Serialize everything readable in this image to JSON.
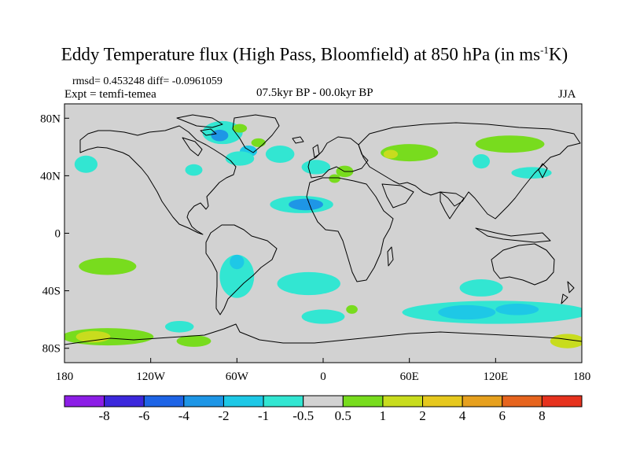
{
  "figure": {
    "title_main": "Eddy Temperature flux (High Pass, Bloomfield) at 850 hPa (in ms",
    "title_sup": "-1",
    "title_end": "K)",
    "stats": "rmsd= 0.453248 diff= -0.0961059",
    "expt": "Expt = temfi-temea",
    "period": "07.5kyr BP - 00.0kyr BP",
    "season": "JJA"
  },
  "chart_data": {
    "type": "heatmap",
    "variable": "Eddy Temperature flux difference at 850 hPa",
    "units": "m s-1 K",
    "xlim": [
      -180,
      180
    ],
    "ylim": [
      -90,
      90
    ],
    "x_ticks": [
      {
        "value": -180,
        "label": "180"
      },
      {
        "value": -120,
        "label": "120W"
      },
      {
        "value": -60,
        "label": "60W"
      },
      {
        "value": 0,
        "label": "0"
      },
      {
        "value": 60,
        "label": "60E"
      },
      {
        "value": 120,
        "label": "120E"
      },
      {
        "value": 180,
        "label": "180"
      }
    ],
    "y_ticks": [
      {
        "value": 80,
        "label": "80N"
      },
      {
        "value": 40,
        "label": "40N"
      },
      {
        "value": 0,
        "label": "0"
      },
      {
        "value": -40,
        "label": "40S"
      },
      {
        "value": -80,
        "label": "80S"
      }
    ],
    "colorbar": {
      "colors": [
        "#8c1ee6",
        "#3c28dc",
        "#1e64e6",
        "#1e96e6",
        "#1ec8e6",
        "#32e6d2",
        "#d2d2d2",
        "#78dc1e",
        "#c8dc1e",
        "#e6c81e",
        "#e6a01e",
        "#e6641e",
        "#e6321e"
      ],
      "labels": [
        "-8",
        "-6",
        "-4",
        "-2",
        "-1",
        "-0.5",
        "0.5",
        "1",
        "2",
        "4",
        "6",
        "8"
      ]
    },
    "anomalies": [
      {
        "lon": -70,
        "lat": 70,
        "rlon": 14,
        "rlat": 8,
        "level": 5,
        "tone": "cyan"
      },
      {
        "lon": -72,
        "lat": 68,
        "rlon": 6,
        "rlat": 4,
        "level": 3,
        "tone": "blue"
      },
      {
        "lon": -52,
        "lat": 57,
        "rlon": 6,
        "rlat": 4,
        "level": 4,
        "tone": "blue"
      },
      {
        "lon": -58,
        "lat": 52,
        "rlon": 10,
        "rlat": 5,
        "level": 5,
        "tone": "cyan"
      },
      {
        "lon": -58,
        "lat": 73,
        "rlon": 5,
        "rlat": 3,
        "level": 7,
        "tone": "green"
      },
      {
        "lon": -45,
        "lat": 63,
        "rlon": 5,
        "rlat": 3,
        "level": 7,
        "tone": "green"
      },
      {
        "lon": -165,
        "lat": 48,
        "rlon": 8,
        "rlat": 6,
        "level": 5,
        "tone": "cyan"
      },
      {
        "lon": -90,
        "lat": 44,
        "rlon": 6,
        "rlat": 4,
        "level": 5,
        "tone": "cyan"
      },
      {
        "lon": -30,
        "lat": 55,
        "rlon": 10,
        "rlat": 6,
        "level": 5,
        "tone": "cyan"
      },
      {
        "lon": -5,
        "lat": 46,
        "rlon": 10,
        "rlat": 5,
        "level": 5,
        "tone": "cyan"
      },
      {
        "lon": 15,
        "lat": 43,
        "rlon": 6,
        "rlat": 4,
        "level": 7,
        "tone": "green"
      },
      {
        "lon": 8,
        "lat": 38,
        "rlon": 4,
        "rlat": 3,
        "level": 7,
        "tone": "green"
      },
      {
        "lon": -15,
        "lat": 20,
        "rlon": 22,
        "rlat": 6,
        "level": 5,
        "tone": "cyan"
      },
      {
        "lon": -12,
        "lat": 20,
        "rlon": 12,
        "rlat": 4,
        "level": 3,
        "tone": "blue"
      },
      {
        "lon": 60,
        "lat": 56,
        "rlon": 20,
        "rlat": 6,
        "level": 7,
        "tone": "green"
      },
      {
        "lon": 47,
        "lat": 55,
        "rlon": 5,
        "rlat": 3,
        "level": 8,
        "tone": "yellow"
      },
      {
        "lon": 130,
        "lat": 62,
        "rlon": 24,
        "rlat": 6,
        "level": 7,
        "tone": "green"
      },
      {
        "lon": 110,
        "lat": 50,
        "rlon": 6,
        "rlat": 5,
        "level": 5,
        "tone": "cyan"
      },
      {
        "lon": 145,
        "lat": 42,
        "rlon": 14,
        "rlat": 4,
        "level": 5,
        "tone": "cyan"
      },
      {
        "lon": -150,
        "lat": -23,
        "rlon": 20,
        "rlat": 6,
        "level": 7,
        "tone": "green"
      },
      {
        "lon": -60,
        "lat": -30,
        "rlon": 12,
        "rlat": 15,
        "level": 5,
        "tone": "cyan"
      },
      {
        "lon": -60,
        "lat": -20,
        "rlon": 5,
        "rlat": 5,
        "level": 4,
        "tone": "blue"
      },
      {
        "lon": -10,
        "lat": -35,
        "rlon": 22,
        "rlat": 8,
        "level": 5,
        "tone": "cyan"
      },
      {
        "lon": 0,
        "lat": -58,
        "rlon": 15,
        "rlat": 5,
        "level": 5,
        "tone": "cyan"
      },
      {
        "lon": 20,
        "lat": -53,
        "rlon": 4,
        "rlat": 3,
        "level": 7,
        "tone": "green"
      },
      {
        "lon": 120,
        "lat": -55,
        "rlon": 65,
        "rlat": 8,
        "level": 5,
        "tone": "cyan"
      },
      {
        "lon": 100,
        "lat": -55,
        "rlon": 20,
        "rlat": 5,
        "level": 4,
        "tone": "blue"
      },
      {
        "lon": 135,
        "lat": -53,
        "rlon": 15,
        "rlat": 4,
        "level": 4,
        "tone": "blue"
      },
      {
        "lon": 110,
        "lat": -38,
        "rlon": 15,
        "rlat": 6,
        "level": 5,
        "tone": "cyan"
      },
      {
        "lon": -150,
        "lat": -72,
        "rlon": 32,
        "rlat": 6,
        "level": 7,
        "tone": "green"
      },
      {
        "lon": -160,
        "lat": -72,
        "rlon": 12,
        "rlat": 4,
        "level": 8,
        "tone": "yellow"
      },
      {
        "lon": -90,
        "lat": -75,
        "rlon": 12,
        "rlat": 4,
        "level": 7,
        "tone": "green"
      },
      {
        "lon": -100,
        "lat": -65,
        "rlon": 10,
        "rlat": 4,
        "level": 5,
        "tone": "cyan"
      },
      {
        "lon": 170,
        "lat": -75,
        "rlon": 12,
        "rlat": 5,
        "level": 8,
        "tone": "yellow"
      }
    ]
  }
}
